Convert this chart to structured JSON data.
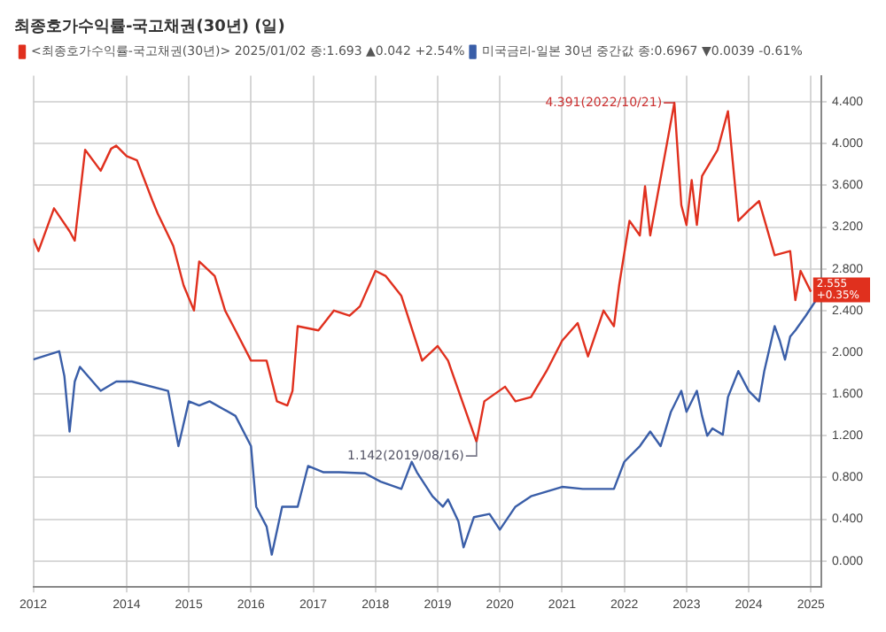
{
  "chart_data": {
    "type": "line",
    "title": "최종호가수익률-국고채권(30년) (일)",
    "series": [
      {
        "name": "<최종호가수익률-국고채권(30년)> 2025/01/02 종:1.693 ▲0.042 +2.54%",
        "color": "#e0301e",
        "x": [
          "2012-07",
          "2012-08",
          "2012-11",
          "2013-02",
          "2013-03",
          "2013-05",
          "2013-08",
          "2013-10",
          "2013-11",
          "2014-01",
          "2014-03",
          "2014-06",
          "2014-07",
          "2014-10",
          "2014-12",
          "2015-02",
          "2015-03",
          "2015-06",
          "2015-08",
          "2015-10",
          "2016-01",
          "2016-04",
          "2016-06",
          "2016-08",
          "2016-09",
          "2016-10",
          "2017-02",
          "2017-05",
          "2017-08",
          "2017-10",
          "2018-01",
          "2018-03",
          "2018-06",
          "2018-10",
          "2019-01",
          "2019-03",
          "2019-08-16",
          "2019-10",
          "2020-02",
          "2020-04",
          "2020-07",
          "2020-10",
          "2021-01",
          "2021-04",
          "2021-06",
          "2021-09",
          "2021-11",
          "2021-12",
          "2022-02",
          "2022-04",
          "2022-05",
          "2022-06",
          "2022-10-21",
          "2022-12",
          "2023-01",
          "2023-02",
          "2023-03",
          "2023-04",
          "2023-07",
          "2023-09",
          "2023-11",
          "2024-01",
          "2024-03",
          "2024-06",
          "2024-09",
          "2024-10",
          "2024-11",
          "2025-01"
        ],
        "values": [
          3.09,
          2.97,
          3.38,
          3.16,
          3.07,
          3.94,
          3.74,
          3.95,
          3.98,
          3.88,
          3.84,
          3.45,
          3.33,
          3.02,
          2.64,
          2.4,
          2.87,
          2.73,
          2.4,
          2.21,
          1.92,
          1.92,
          1.53,
          1.49,
          1.63,
          2.25,
          2.21,
          2.4,
          2.35,
          2.44,
          2.78,
          2.73,
          2.54,
          1.92,
          2.06,
          1.92,
          1.142,
          1.53,
          1.67,
          1.53,
          1.57,
          1.82,
          2.11,
          2.28,
          1.96,
          2.4,
          2.25,
          2.64,
          3.26,
          3.12,
          3.59,
          3.12,
          4.391,
          3.41,
          3.22,
          3.65,
          3.22,
          3.69,
          3.94,
          4.31,
          3.26,
          3.36,
          3.45,
          2.93,
          2.97,
          2.5,
          2.78,
          2.58
        ]
      },
      {
        "name": "미국금리-일본 30년 중간값 종:0.6967 ▼0.0039 -0.61%",
        "color": "#3a5ea8",
        "x": [
          "2012-07",
          "2012-12",
          "2013-01",
          "2013-02",
          "2013-03",
          "2013-04",
          "2013-08",
          "2013-11",
          "2014-02",
          "2014-09",
          "2014-11",
          "2015-01",
          "2015-03",
          "2015-05",
          "2015-10",
          "2016-01",
          "2016-02",
          "2016-04",
          "2016-05",
          "2016-07",
          "2016-10",
          "2016-12",
          "2017-03",
          "2017-06",
          "2017-11",
          "2018-02",
          "2018-06",
          "2018-08",
          "2018-09",
          "2018-12",
          "2019-02",
          "2019-03",
          "2019-05",
          "2019-06",
          "2019-08",
          "2019-11",
          "2020-01",
          "2020-04",
          "2020-07",
          "2021-01",
          "2021-05",
          "2021-11",
          "2022-01",
          "2022-04",
          "2022-06",
          "2022-08",
          "2022-10",
          "2022-12",
          "2023-01",
          "2023-03",
          "2023-04",
          "2023-05",
          "2023-06",
          "2023-08",
          "2023-09",
          "2023-11",
          "2024-01",
          "2024-03",
          "2024-04",
          "2024-06",
          "2024-07",
          "2024-08",
          "2024-09",
          "2024-10",
          "2024-12",
          "2025-02"
        ],
        "values": [
          1.93,
          2.01,
          1.77,
          1.24,
          1.72,
          1.86,
          1.63,
          1.72,
          1.72,
          1.63,
          1.1,
          1.53,
          1.49,
          1.53,
          1.39,
          1.1,
          0.52,
          0.33,
          0.06,
          0.52,
          0.52,
          0.91,
          0.85,
          0.85,
          0.84,
          0.76,
          0.69,
          0.95,
          0.85,
          0.62,
          0.52,
          0.59,
          0.38,
          0.13,
          0.42,
          0.45,
          0.3,
          0.52,
          0.62,
          0.71,
          0.69,
          0.69,
          0.95,
          1.1,
          1.24,
          1.1,
          1.43,
          1.63,
          1.43,
          1.63,
          1.39,
          1.2,
          1.27,
          1.21,
          1.57,
          1.82,
          1.63,
          1.53,
          1.82,
          2.25,
          2.11,
          1.93,
          2.15,
          2.21,
          2.35,
          2.5
        ]
      }
    ],
    "xlim": [
      "2012-07",
      "2025-03"
    ],
    "xticks": [
      {
        "value": "2012-07",
        "label": "2012"
      },
      {
        "value": "2014",
        "label": "2014"
      },
      {
        "value": "2015",
        "label": "2015"
      },
      {
        "value": "2016",
        "label": "2016"
      },
      {
        "value": "2017",
        "label": "2017"
      },
      {
        "value": "2018",
        "label": "2018"
      },
      {
        "value": "2019",
        "label": "2019"
      },
      {
        "value": "2020",
        "label": "2020"
      },
      {
        "value": "2021",
        "label": "2021"
      },
      {
        "value": "2022",
        "label": "2022"
      },
      {
        "value": "2023",
        "label": "2023"
      },
      {
        "value": "2024",
        "label": "2024"
      },
      {
        "value": "2025",
        "label": "2025"
      }
    ],
    "ylim": [
      -0.25,
      4.65
    ],
    "yticks": [
      {
        "value": 0,
        "label": "0.000"
      },
      {
        "value": 0.4,
        "label": "0.400"
      },
      {
        "value": 0.8,
        "label": "0.800"
      },
      {
        "value": 1.2,
        "label": "1.200"
      },
      {
        "value": 1.6,
        "label": "1.600"
      },
      {
        "value": 2,
        "label": "2.000"
      },
      {
        "value": 2.4,
        "label": "2.400"
      },
      {
        "value": 2.8,
        "label": "2.800"
      },
      {
        "value": 3.2,
        "label": "3.200"
      },
      {
        "value": 3.6,
        "label": "3.600"
      },
      {
        "value": 4,
        "label": "4.000"
      },
      {
        "value": 4.4,
        "label": "4.400"
      }
    ],
    "annotations": [
      {
        "text": "4.391(2022/10/21)",
        "x": "2022-10-21",
        "y": 4.391
      },
      {
        "text": "1.142(2019/08/16)",
        "x": "2019-08-16",
        "y": 1.142
      },
      {
        "text": "2.555 +0.35%",
        "x": "2025-01",
        "y": 2.58
      }
    ],
    "grid": true,
    "legend": "top left",
    "marker": "none",
    "line_style": "solid"
  }
}
